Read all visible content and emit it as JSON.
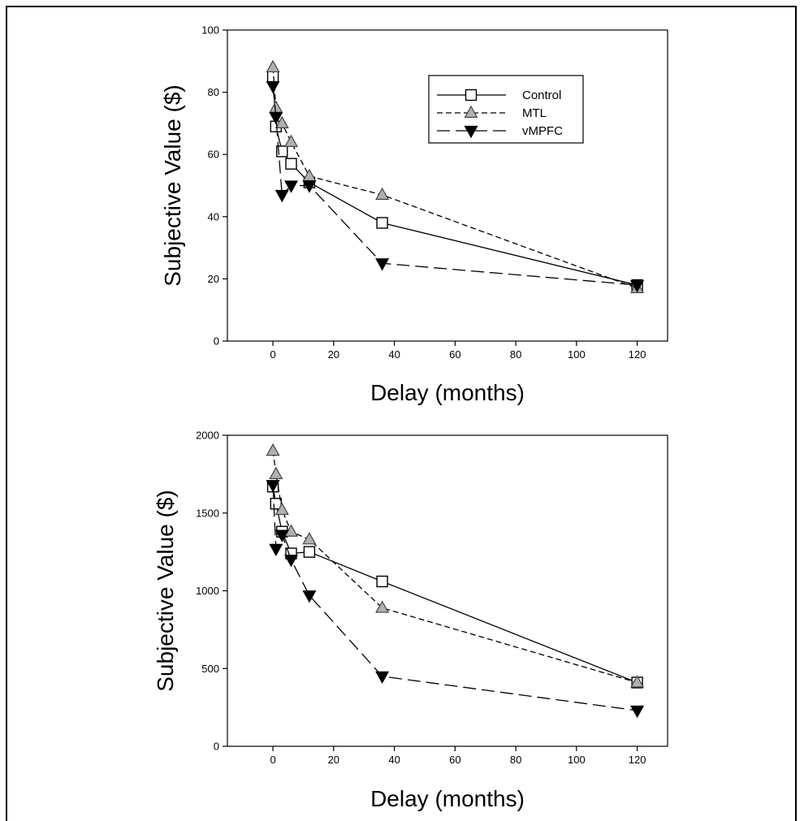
{
  "chart_data": [
    {
      "type": "line",
      "xlabel": "Delay (months)",
      "ylabel": "Subjective Value ($)",
      "xlim": [
        -15,
        130
      ],
      "ylim": [
        0,
        100
      ],
      "xticks": [
        0,
        20,
        40,
        60,
        80,
        100,
        120
      ],
      "yticks": [
        0,
        20,
        40,
        60,
        80,
        100
      ],
      "legend": "top-right",
      "grid": false,
      "series": [
        {
          "name": "Control",
          "marker": "square",
          "line": "solid",
          "fill": "#ffffff",
          "x": [
            0,
            1,
            3,
            6,
            12,
            36,
            120
          ],
          "y": [
            85,
            69,
            61,
            57,
            51,
            38,
            18
          ]
        },
        {
          "name": "MTL",
          "marker": "triangle-up",
          "line": "dashed",
          "fill": "#b0b0b0",
          "x": [
            0,
            1,
            3,
            6,
            12,
            36,
            120
          ],
          "y": [
            88,
            75,
            70,
            64,
            53,
            47,
            17
          ]
        },
        {
          "name": "vMPFC",
          "marker": "triangle-down",
          "line": "long-dashed",
          "fill": "#000000",
          "x": [
            0,
            1,
            3,
            6,
            12,
            36,
            120
          ],
          "y": [
            82,
            72,
            47,
            50,
            50,
            25,
            18
          ]
        }
      ]
    },
    {
      "type": "line",
      "xlabel": "Delay (months)",
      "ylabel": "Subjective Value ($)",
      "xlim": [
        -15,
        130
      ],
      "ylim": [
        0,
        2000
      ],
      "xticks": [
        0,
        20,
        40,
        60,
        80,
        100,
        120
      ],
      "yticks": [
        0,
        500,
        1000,
        1500,
        2000
      ],
      "grid": false,
      "series": [
        {
          "name": "Control",
          "marker": "square",
          "line": "solid",
          "fill": "#ffffff",
          "x": [
            0,
            1,
            3,
            6,
            12,
            36,
            120
          ],
          "y": [
            1670,
            1560,
            1380,
            1240,
            1250,
            1060,
            410
          ]
        },
        {
          "name": "MTL",
          "marker": "triangle-up",
          "line": "dashed",
          "fill": "#b0b0b0",
          "x": [
            0,
            1,
            3,
            6,
            12,
            36,
            120
          ],
          "y": [
            1900,
            1750,
            1520,
            1380,
            1330,
            890,
            410
          ]
        },
        {
          "name": "vMPFC",
          "marker": "triangle-down",
          "line": "long-dashed",
          "fill": "#000000",
          "x": [
            0,
            1,
            3,
            6,
            12,
            36,
            120
          ],
          "y": [
            1680,
            1270,
            1360,
            1200,
            970,
            450,
            230
          ]
        }
      ]
    }
  ]
}
